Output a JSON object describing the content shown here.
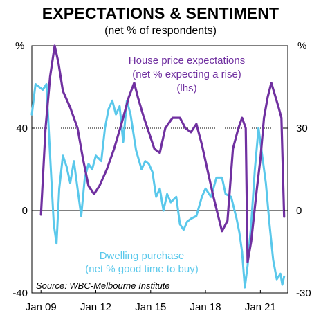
{
  "chart_data": {
    "type": "line",
    "title": "EXPECTATIONS & SENTIMENT",
    "subtitle": "(net % of respondents)",
    "left_unit": "%",
    "right_unit": "%",
    "source": "Source: WBC-Melbourne Institute",
    "x_range": [
      2008.5,
      2022.5
    ],
    "x_ticks": [
      {
        "value": 2009,
        "label": "Jan 09"
      },
      {
        "value": 2012,
        "label": "Jan 12"
      },
      {
        "value": 2015,
        "label": "Jan 15"
      },
      {
        "value": 2018,
        "label": "Jan 18"
      },
      {
        "value": 2021,
        "label": "Jan 21"
      }
    ],
    "y_left": {
      "range": [
        -40,
        80
      ],
      "ticks": [
        -40,
        0,
        40
      ]
    },
    "y_right": {
      "range": [
        -30,
        60
      ],
      "ticks": [
        -30,
        0,
        30
      ]
    },
    "gridline": {
      "axis": "left",
      "value": 40,
      "style": "dotted"
    },
    "series": [
      {
        "name": "House price expectations",
        "label_lines": [
          "House price expectations",
          "(net % expecting a rise)",
          "(lhs)"
        ],
        "axis": "left",
        "color": "#7030a0",
        "points": [
          [
            2009.0,
            -2
          ],
          [
            2009.25,
            40
          ],
          [
            2009.5,
            65
          ],
          [
            2009.75,
            80
          ],
          [
            2009.95,
            72
          ],
          [
            2010.2,
            58
          ],
          [
            2010.6,
            50
          ],
          [
            2011.0,
            40
          ],
          [
            2011.3,
            25
          ],
          [
            2011.6,
            12
          ],
          [
            2011.9,
            8
          ],
          [
            2012.2,
            12
          ],
          [
            2012.6,
            20
          ],
          [
            2013.0,
            30
          ],
          [
            2013.4,
            42
          ],
          [
            2013.8,
            55
          ],
          [
            2014.1,
            62
          ],
          [
            2014.3,
            55
          ],
          [
            2014.6,
            46
          ],
          [
            2014.9,
            38
          ],
          [
            2015.2,
            30
          ],
          [
            2015.5,
            28
          ],
          [
            2015.8,
            40
          ],
          [
            2016.2,
            45
          ],
          [
            2016.6,
            45
          ],
          [
            2016.9,
            40
          ],
          [
            2017.2,
            38
          ],
          [
            2017.5,
            42
          ],
          [
            2017.8,
            32
          ],
          [
            2018.1,
            20
          ],
          [
            2018.4,
            8
          ],
          [
            2018.7,
            -3
          ],
          [
            2018.9,
            -10
          ],
          [
            2019.2,
            -5
          ],
          [
            2019.5,
            30
          ],
          [
            2019.8,
            40
          ],
          [
            2020.0,
            45
          ],
          [
            2020.2,
            40
          ],
          [
            2020.3,
            -25
          ],
          [
            2020.5,
            -15
          ],
          [
            2020.8,
            10
          ],
          [
            2021.0,
            25
          ],
          [
            2021.2,
            45
          ],
          [
            2021.4,
            55
          ],
          [
            2021.6,
            62
          ],
          [
            2021.8,
            56
          ],
          [
            2022.0,
            50
          ],
          [
            2022.15,
            45
          ],
          [
            2022.3,
            -3
          ]
        ]
      },
      {
        "name": "Dwelling purchase",
        "label_lines": [
          "Dwelling purchase",
          "(net % good time to buy)"
        ],
        "axis": "right",
        "color": "#5ac8eb",
        "points": [
          [
            2008.5,
            35
          ],
          [
            2008.7,
            46
          ],
          [
            2008.9,
            45
          ],
          [
            2009.1,
            44
          ],
          [
            2009.3,
            46
          ],
          [
            2009.5,
            20
          ],
          [
            2009.7,
            -5
          ],
          [
            2009.85,
            -12
          ],
          [
            2010.0,
            8
          ],
          [
            2010.2,
            20
          ],
          [
            2010.4,
            16
          ],
          [
            2010.6,
            10
          ],
          [
            2010.8,
            18
          ],
          [
            2011.0,
            8
          ],
          [
            2011.2,
            -2
          ],
          [
            2011.4,
            12
          ],
          [
            2011.6,
            17
          ],
          [
            2011.8,
            15
          ],
          [
            2012.0,
            20
          ],
          [
            2012.3,
            18
          ],
          [
            2012.5,
            30
          ],
          [
            2012.7,
            37
          ],
          [
            2012.9,
            40
          ],
          [
            2013.1,
            35
          ],
          [
            2013.3,
            38
          ],
          [
            2013.5,
            25
          ],
          [
            2013.7,
            40
          ],
          [
            2013.9,
            35
          ],
          [
            2014.2,
            22
          ],
          [
            2014.5,
            15
          ],
          [
            2014.7,
            18
          ],
          [
            2014.9,
            17
          ],
          [
            2015.1,
            14
          ],
          [
            2015.3,
            5
          ],
          [
            2015.5,
            8
          ],
          [
            2015.7,
            0
          ],
          [
            2015.9,
            6
          ],
          [
            2016.1,
            3
          ],
          [
            2016.4,
            5
          ],
          [
            2016.6,
            -5
          ],
          [
            2016.8,
            -7
          ],
          [
            2017.0,
            -4
          ],
          [
            2017.2,
            -3
          ],
          [
            2017.5,
            -2
          ],
          [
            2017.8,
            5
          ],
          [
            2018.0,
            8
          ],
          [
            2018.3,
            5
          ],
          [
            2018.6,
            12
          ],
          [
            2018.9,
            12
          ],
          [
            2019.1,
            6
          ],
          [
            2019.4,
            5
          ],
          [
            2019.7,
            -3
          ],
          [
            2019.85,
            -8
          ],
          [
            2020.0,
            -15
          ],
          [
            2020.15,
            -28
          ],
          [
            2020.3,
            -20
          ],
          [
            2020.5,
            -5
          ],
          [
            2020.7,
            15
          ],
          [
            2020.9,
            30
          ],
          [
            2021.1,
            20
          ],
          [
            2021.3,
            10
          ],
          [
            2021.5,
            -5
          ],
          [
            2021.7,
            -18
          ],
          [
            2021.9,
            -25
          ],
          [
            2022.1,
            -23
          ],
          [
            2022.2,
            -27
          ],
          [
            2022.3,
            -24
          ]
        ]
      }
    ]
  }
}
